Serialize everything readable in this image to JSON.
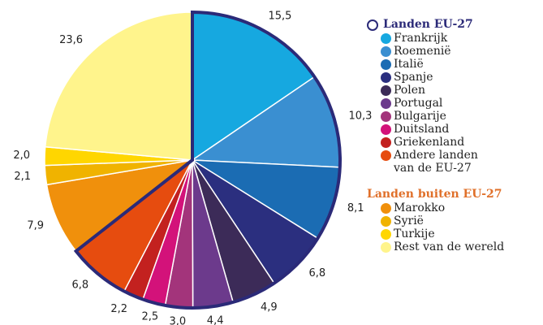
{
  "chart_data": {
    "type": "pie",
    "groups": [
      {
        "name": "Landen EU-27",
        "color": "#2b2a78",
        "categories": [
          "Frankrijk",
          "Roemenië",
          "Italië",
          "Spanje",
          "Polen",
          "Portugal",
          "Bulgarije",
          "Duitsland",
          "Griekenland",
          "Andere landen van de EU-27"
        ],
        "values": [
          15.5,
          10.3,
          8.1,
          6.8,
          4.9,
          4.4,
          3.0,
          2.5,
          2.2,
          6.8
        ],
        "value_labels": [
          "15,5",
          "10,3",
          "8,1",
          "6,8",
          "4,9",
          "4,4",
          "3,0",
          "2,5",
          "2,2",
          "6,8"
        ],
        "colors": [
          "#16a8e0",
          "#3a8fd1",
          "#1b6cb3",
          "#2b2f7f",
          "#3c2b58",
          "#6c3a8c",
          "#a3347b",
          "#d3127a",
          "#c3211f",
          "#e64c0f"
        ]
      },
      {
        "name": "Landen buiten EU-27",
        "color": "#e0702a",
        "categories": [
          "Marokko",
          "Syrië",
          "Turkije",
          "Rest van de wereld"
        ],
        "values": [
          7.9,
          2.1,
          2.0,
          23.6
        ],
        "value_labels": [
          "7,9",
          "2,1",
          "2,0",
          "23,6"
        ],
        "colors": [
          "#f0900c",
          "#f0b300",
          "#ffd600",
          "#fff48c"
        ]
      }
    ]
  }
}
